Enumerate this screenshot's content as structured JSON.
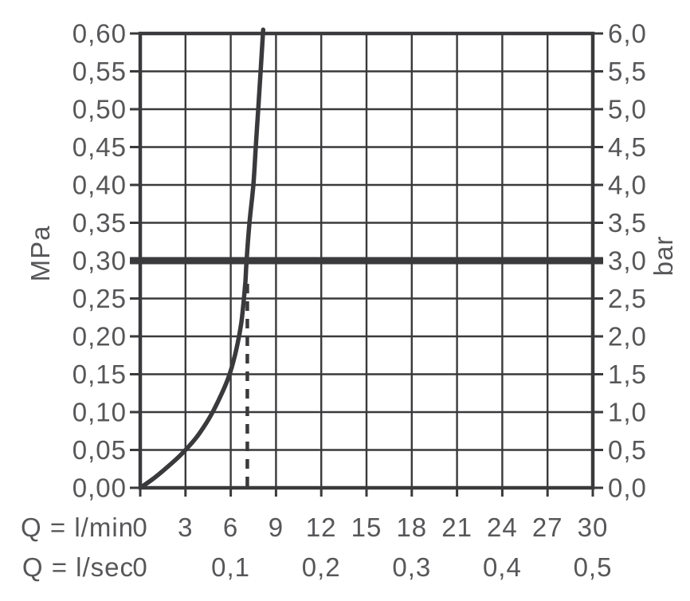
{
  "page": {
    "background": "#ffffff"
  },
  "chart_data": {
    "type": "line",
    "title": "",
    "grid": true,
    "legend": false,
    "colors": {
      "lines": "#3a3a3c",
      "text": "#57575a",
      "background": "#ffffff"
    },
    "x_axis": {
      "row1_label": "Q = l/min",
      "row1_ticks": [
        "0",
        "3",
        "6",
        "9",
        "12",
        "15",
        "18",
        "21",
        "24",
        "27",
        "30"
      ],
      "row1_values": [
        0,
        3,
        6,
        9,
        12,
        15,
        18,
        21,
        24,
        27,
        30
      ],
      "row2_label": "Q = l/sec",
      "row2_ticks": [
        "0",
        "0,1",
        "0,2",
        "0,3",
        "0,4",
        "0,5"
      ],
      "row2_positions_lmin": [
        0,
        6,
        12,
        18,
        24,
        30
      ],
      "range_lmin": [
        0,
        30
      ],
      "gridline_step_lmin": 3
    },
    "y_axis_left": {
      "unit": "MPa",
      "ticks": [
        "0,60",
        "0,55",
        "0,50",
        "0,45",
        "0,40",
        "0,35",
        "0,30",
        "0,25",
        "0,20",
        "0,15",
        "0,10",
        "0,05",
        "0,00"
      ],
      "values": [
        0.6,
        0.55,
        0.5,
        0.45,
        0.4,
        0.35,
        0.3,
        0.25,
        0.2,
        0.15,
        0.1,
        0.05,
        0.0
      ],
      "range": [
        0,
        0.6
      ]
    },
    "y_axis_right": {
      "unit": "bar",
      "ticks": [
        "6,0",
        "5,5",
        "5,0",
        "4,5",
        "4,0",
        "3,5",
        "3,0",
        "2,5",
        "2,0",
        "1,5",
        "1,0",
        "0,5",
        "0,0"
      ],
      "values": [
        6.0,
        5.5,
        5.0,
        4.5,
        4.0,
        3.5,
        3.0,
        2.5,
        2.0,
        1.5,
        1.0,
        0.5,
        0.0
      ],
      "range": [
        0,
        6
      ]
    },
    "reference_line": {
      "mpa": 0.3,
      "bar": 3.0,
      "description": "thick horizontal line at 0,30 MPa / 3,0 bar"
    },
    "guide_line": {
      "lmin": 7.1,
      "from_mpa": 0.0,
      "to_mpa": 0.274,
      "style": "dashed-vertical"
    },
    "series": [
      {
        "name": "pressure-flow-curve",
        "points_lmin_mpa": [
          [
            0,
            0.0
          ],
          [
            0.8,
            0.011
          ],
          [
            1.6,
            0.024
          ],
          [
            2.4,
            0.038
          ],
          [
            3.0,
            0.05
          ],
          [
            3.7,
            0.066
          ],
          [
            4.3,
            0.083
          ],
          [
            4.8,
            0.1
          ],
          [
            5.3,
            0.12
          ],
          [
            5.8,
            0.143
          ],
          [
            6.15,
            0.165
          ],
          [
            6.45,
            0.19
          ],
          [
            6.7,
            0.218
          ],
          [
            6.85,
            0.245
          ],
          [
            6.97,
            0.272
          ],
          [
            7.05,
            0.3
          ],
          [
            7.24,
            0.35
          ],
          [
            7.5,
            0.4
          ],
          [
            7.66,
            0.45
          ],
          [
            7.82,
            0.5
          ],
          [
            7.98,
            0.55
          ],
          [
            8.15,
            0.605
          ]
        ]
      }
    ]
  }
}
